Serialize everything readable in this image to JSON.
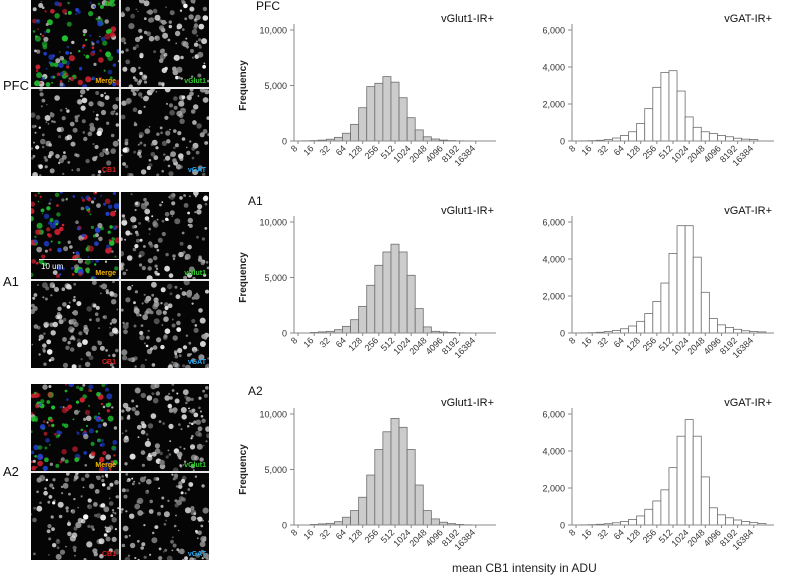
{
  "rows": [
    {
      "label": "PFC",
      "title": "PFC",
      "scale_bar": ""
    },
    {
      "label": "A1",
      "title": "A1",
      "scale_bar": "10 um"
    },
    {
      "label": "A2",
      "title": "A2",
      "scale_bar": ""
    }
  ],
  "micro_labels": {
    "merge": "Merge",
    "vglut1": "vGlut1",
    "cb1": "CB1",
    "vgat": "vGAT"
  },
  "colors": {
    "gray_bar": "#cccccc",
    "white_bar": "#ffffff",
    "merge_label": "#f5b400",
    "vglut1_label": "#2fd02f",
    "cb1_label": "#e02020",
    "vgat_label": "#2aa8f0"
  },
  "x_axis_title": "mean CB1 intensity in ADU",
  "chart_data": [
    {
      "type": "bar",
      "row": "PFC",
      "series_label": "vGlut1-IR+",
      "ylabel": "Frequency",
      "yticks": [
        "0",
        "5,000",
        "10,000"
      ],
      "ylim": [
        0,
        10000
      ],
      "xticks": [
        "8",
        "16",
        "32",
        "64",
        "128",
        "256",
        "512",
        "1024",
        "2048",
        "4096",
        "8192",
        "16384"
      ],
      "values": [
        0,
        20,
        40,
        80,
        160,
        330,
        700,
        1500,
        3000,
        4900,
        5200,
        5800,
        5300,
        3900,
        2100,
        1000,
        380,
        180,
        80,
        40,
        20,
        10,
        0,
        0,
        0
      ]
    },
    {
      "type": "bar",
      "row": "PFC",
      "series_label": "vGAT-IR+",
      "ylabel": "",
      "yticks": [
        "0",
        "2,000",
        "4,000",
        "6,000"
      ],
      "ylim": [
        0,
        6000
      ],
      "xticks": [
        "8",
        "16",
        "32",
        "64",
        "128",
        "256",
        "512",
        "1024",
        "2048",
        "4096",
        "8192",
        "16384"
      ],
      "values": [
        0,
        10,
        20,
        40,
        80,
        160,
        300,
        500,
        950,
        1750,
        2900,
        3700,
        3800,
        2700,
        1300,
        740,
        500,
        400,
        300,
        230,
        150,
        100,
        80,
        0,
        0
      ]
    },
    {
      "type": "bar",
      "row": "A1",
      "series_label": "vGlut1-IR+",
      "ylabel": "Frequency",
      "yticks": [
        "0",
        "5,000",
        "10,000"
      ],
      "ylim": [
        0,
        10000
      ],
      "xticks": [
        "8",
        "16",
        "32",
        "64",
        "128",
        "256",
        "512",
        "1024",
        "2048",
        "4096",
        "8192",
        "16384"
      ],
      "values": [
        0,
        0,
        50,
        100,
        150,
        300,
        600,
        1200,
        2400,
        4300,
        6100,
        7300,
        8000,
        7300,
        5200,
        2200,
        550,
        150,
        90,
        50,
        20,
        10,
        0,
        0,
        0
      ]
    },
    {
      "type": "bar",
      "row": "A1",
      "series_label": "vGAT-IR+",
      "ylabel": "",
      "yticks": [
        "0",
        "2,000",
        "4,000",
        "6,000"
      ],
      "ylim": [
        0,
        6000
      ],
      "xticks": [
        "8",
        "16",
        "32",
        "64",
        "128",
        "256",
        "512",
        "1024",
        "2048",
        "4096",
        "8192",
        "16384"
      ],
      "values": [
        0,
        10,
        20,
        40,
        80,
        130,
        230,
        380,
        630,
        1050,
        1700,
        2700,
        4300,
        5800,
        5800,
        4100,
        2200,
        780,
        440,
        300,
        200,
        120,
        80,
        60,
        0
      ]
    },
    {
      "type": "bar",
      "row": "A2",
      "series_label": "vGlut1-IR+",
      "ylabel": "Frequency",
      "yticks": [
        "0",
        "5,000",
        "10,000"
      ],
      "ylim": [
        0,
        10000
      ],
      "xticks": [
        "8",
        "16",
        "32",
        "64",
        "128",
        "256",
        "512",
        "1024",
        "2048",
        "4096",
        "8192",
        "16384"
      ],
      "values": [
        0,
        0,
        50,
        100,
        150,
        300,
        700,
        1300,
        2500,
        4500,
        6800,
        8400,
        9600,
        8800,
        6800,
        3600,
        1300,
        550,
        250,
        120,
        50,
        20,
        0,
        0,
        0
      ]
    },
    {
      "type": "bar",
      "row": "A2",
      "series_label": "vGAT-IR+",
      "ylabel": "",
      "yticks": [
        "0",
        "2,000",
        "4,000",
        "6,000"
      ],
      "ylim": [
        0,
        6000
      ],
      "xticks": [
        "8",
        "16",
        "32",
        "64",
        "128",
        "256",
        "512",
        "1024",
        "2048",
        "4096",
        "8192",
        "16384"
      ],
      "values": [
        0,
        10,
        20,
        40,
        70,
        120,
        190,
        300,
        490,
        850,
        1300,
        1900,
        3100,
        4800,
        5700,
        4800,
        2600,
        930,
        550,
        390,
        270,
        190,
        130,
        80,
        0
      ]
    }
  ]
}
